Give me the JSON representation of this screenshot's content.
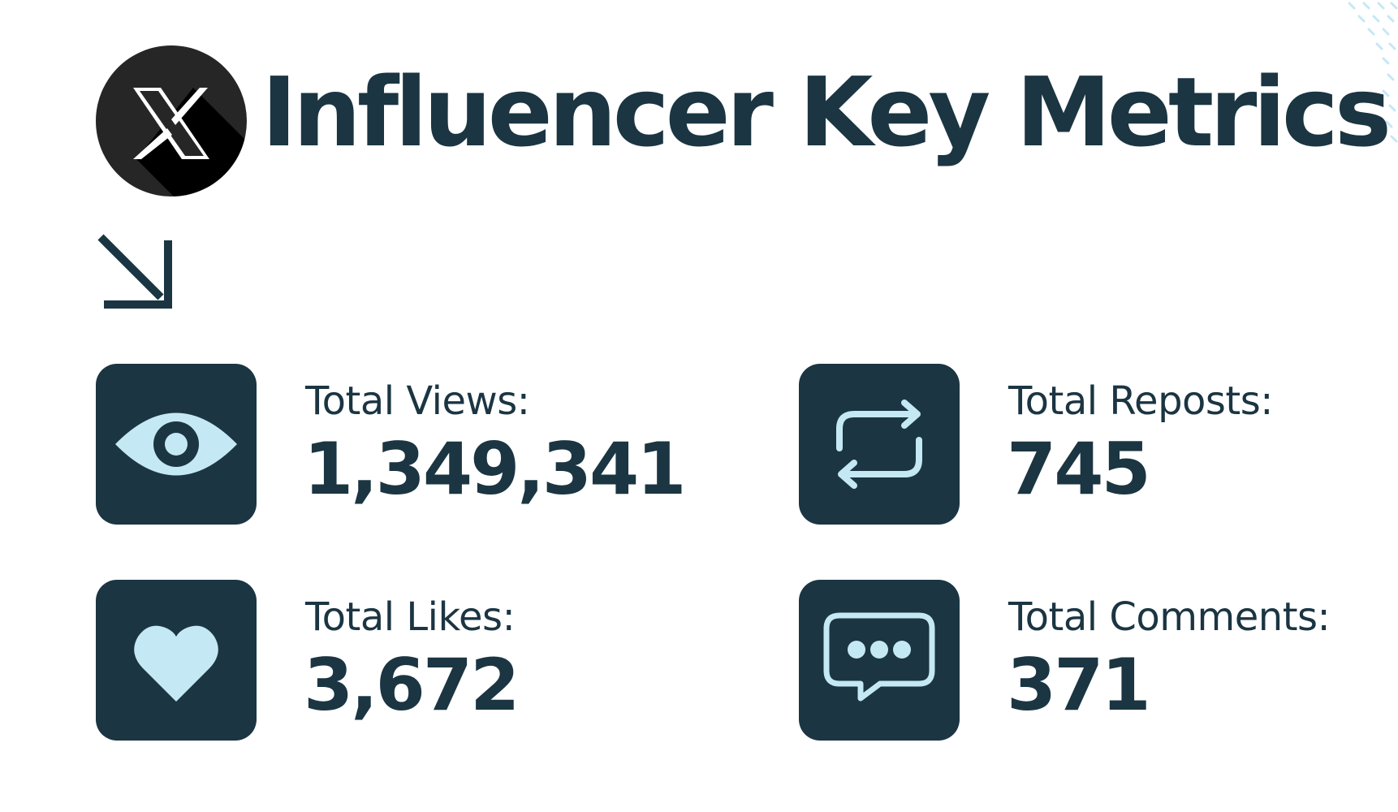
{
  "header": {
    "title": "Influencer Key Metrics",
    "logo_icon": "x-logo-icon"
  },
  "colors": {
    "primary": "#1b3542",
    "icon_fill": "#c5e8f5",
    "logo_bg": "#1a1a1a",
    "background": "#ffffff"
  },
  "metrics": {
    "views": {
      "label": "Total Views:",
      "value": "1,349,341",
      "icon": "eye-icon"
    },
    "reposts": {
      "label": "Total Reposts:",
      "value": "745",
      "icon": "repost-icon"
    },
    "likes": {
      "label": "Total Likes:",
      "value": "3,672",
      "icon": "heart-icon"
    },
    "comments": {
      "label": "Total Comments:",
      "value": "371",
      "icon": "comment-icon"
    }
  }
}
